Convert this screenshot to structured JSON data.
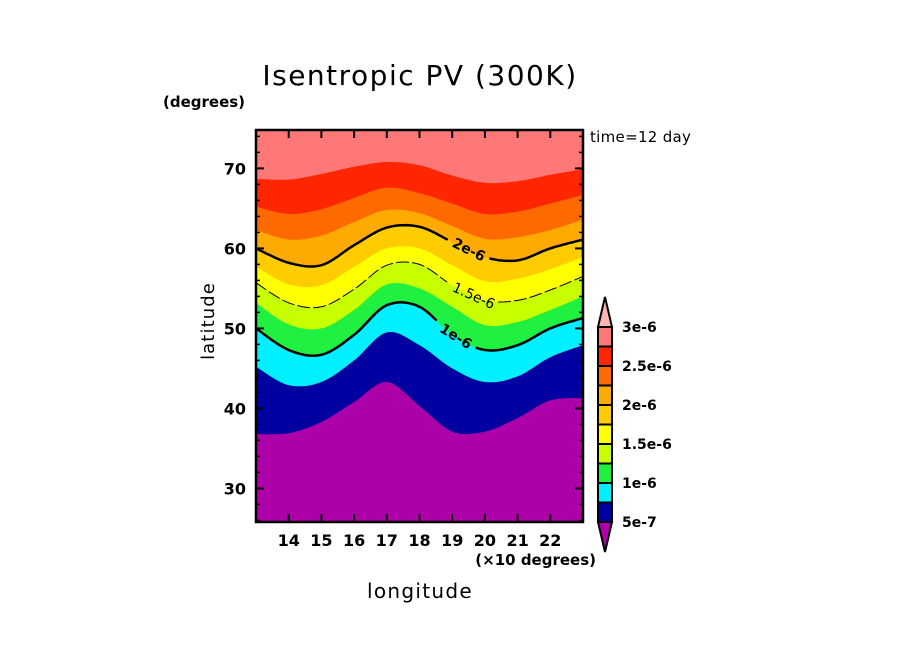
{
  "chart_data": {
    "type": "heatmap",
    "subtype": "filled-contour",
    "title": "Isentropic PV (300K)",
    "xlabel": "longitude",
    "ylabel": "latitude",
    "x_unit": "(×10 degrees)",
    "y_unit": "(degrees)",
    "annotation": "time=12 day",
    "xlim": [
      13,
      23
    ],
    "ylim": [
      25.8,
      74.8
    ],
    "grid": false,
    "xticks": [
      14,
      15,
      16,
      17,
      18,
      19,
      20,
      21,
      22
    ],
    "xtick_labels": [
      "14",
      "15",
      "16",
      "17",
      "18",
      "19",
      "20",
      "21",
      "22"
    ],
    "yticks": [
      30,
      40,
      50,
      60,
      70
    ],
    "ytick_labels": [
      "30",
      "40",
      "50",
      "60",
      "70"
    ],
    "yminor_ticks": [
      26,
      28,
      32,
      34,
      36,
      38,
      42,
      44,
      46,
      48,
      52,
      54,
      56,
      58,
      62,
      64,
      66,
      68,
      72,
      74
    ],
    "levels": [
      5e-07,
      7.5e-07,
      1e-06,
      1.25e-06,
      1.5e-06,
      1.75e-06,
      2e-06,
      2.25e-06,
      2.5e-06,
      2.75e-06,
      3e-06
    ],
    "colors": [
      "#AE00A8",
      "#0000A0",
      "#00F0FF",
      "#20F040",
      "#C8FF00",
      "#FFFF00",
      "#FFCC00",
      "#FFAA00",
      "#FF6A00",
      "#FF2600",
      "#FF7878",
      "#FFB4B4"
    ],
    "contour_boundaries": {
      "lon": [
        13,
        14,
        15,
        16,
        17,
        18,
        19,
        20,
        21,
        22,
        23
      ],
      "curves": [
        {
          "level": 5e-07,
          "lat": [
            36.8,
            36.9,
            38.3,
            40.8,
            43.3,
            40.3,
            37.1,
            37.1,
            38.8,
            41.0,
            41.3
          ]
        },
        {
          "level": 7.5e-07,
          "lat": [
            45.2,
            42.9,
            43.3,
            46.0,
            49.5,
            47.9,
            45.0,
            43.3,
            44.0,
            46.4,
            47.9
          ]
        },
        {
          "level": 1e-06,
          "lat": [
            50.0,
            47.3,
            46.7,
            49.2,
            52.9,
            52.7,
            49.2,
            47.3,
            47.9,
            50.0,
            51.3
          ]
        },
        {
          "level": 1.25e-06,
          "lat": [
            53.2,
            50.5,
            50.0,
            52.3,
            55.5,
            55.0,
            52.7,
            50.4,
            50.8,
            52.3,
            54.0
          ]
        },
        {
          "level": 1.5e-06,
          "lat": [
            55.7,
            53.2,
            52.7,
            54.9,
            57.9,
            58.0,
            55.4,
            53.5,
            53.5,
            54.8,
            56.5
          ]
        },
        {
          "level": 1.75e-06,
          "lat": [
            57.7,
            55.5,
            55.4,
            57.7,
            60.0,
            60.0,
            57.9,
            55.9,
            56.2,
            57.4,
            58.9
          ]
        },
        {
          "level": 2e-06,
          "lat": [
            60.0,
            58.2,
            57.9,
            60.4,
            62.6,
            62.7,
            60.8,
            58.9,
            58.5,
            60.0,
            61.1
          ]
        },
        {
          "level": 2.25e-06,
          "lat": [
            62.3,
            61.1,
            61.6,
            63.3,
            64.8,
            64.4,
            62.8,
            61.2,
            61.4,
            62.3,
            63.6
          ]
        },
        {
          "level": 2.5e-06,
          "lat": [
            65.2,
            64.3,
            64.9,
            66.3,
            67.6,
            66.9,
            65.6,
            64.3,
            64.6,
            65.6,
            66.7
          ]
        },
        {
          "level": 2.75e-06,
          "lat": [
            68.7,
            68.6,
            69.3,
            70.2,
            70.8,
            70.4,
            69.1,
            68.2,
            68.4,
            69.2,
            69.9
          ]
        }
      ]
    },
    "contour_lines": [
      {
        "level": 2e-06,
        "label": "2e-6",
        "style": "solid-thick",
        "label_lon": 19.5
      },
      {
        "level": 1.5e-06,
        "label": "1.5e-6",
        "style": "dashed-thin",
        "label_lon": 19.65
      },
      {
        "level": 1e-06,
        "label": "1e-6",
        "style": "solid-thick",
        "label_lon": 19.1
      }
    ],
    "colorbar": {
      "placement": "right",
      "extend": "both",
      "labels": [
        {
          "value": 3e-06,
          "text": "3e-6"
        },
        {
          "value": 2.5e-06,
          "text": "2.5e-6"
        },
        {
          "value": 2e-06,
          "text": "2e-6"
        },
        {
          "value": 1.5e-06,
          "text": "1.5e-6"
        },
        {
          "value": 1e-06,
          "text": "1e-6"
        },
        {
          "value": 5e-07,
          "text": "5e-7"
        }
      ]
    }
  }
}
